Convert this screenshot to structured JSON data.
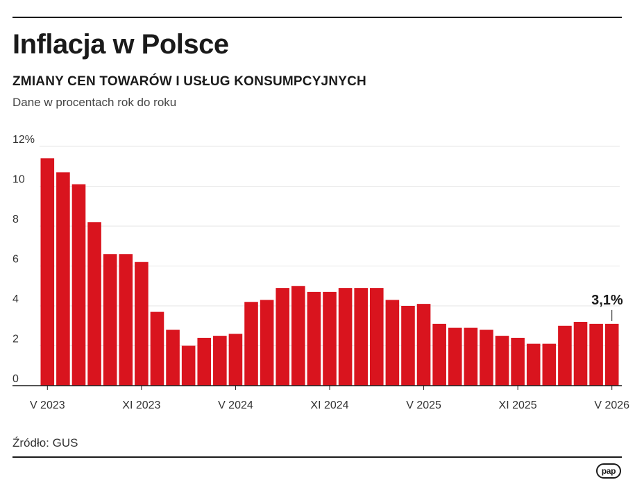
{
  "header": {
    "title": "Inflacja w Polsce",
    "subtitle": "ZMIANY CEN TOWARÓW I USŁUG KONSUMPCYJNYCH",
    "unit_note": "Dane w procentach rok do roku"
  },
  "footer": {
    "source": "Źródło: GUS",
    "logo_text": "pap"
  },
  "chart_data": {
    "type": "bar",
    "title": "Inflacja w Polsce",
    "subtitle": "ZMIANY CEN TOWARÓW I USŁUG KONSUMPCYJNYCH",
    "xlabel": "",
    "ylabel": "",
    "ylim": [
      0,
      12
    ],
    "yticks": [
      "0",
      "2",
      "4",
      "6",
      "8",
      "10",
      "12%"
    ],
    "grid": true,
    "legend": "none",
    "bar_color": "#d9141e",
    "categories": [
      "V 2023",
      "VI 2023",
      "VII 2023",
      "VIII 2023",
      "IX 2023",
      "X 2023",
      "XI 2023",
      "XII 2023",
      "I 2024",
      "II 2024",
      "III 2024",
      "IV 2024",
      "V 2024",
      "VI 2024",
      "VII 2024",
      "VIII 2024",
      "IX 2024",
      "X 2024",
      "XI 2024",
      "XII 2024",
      "I 2025",
      "II 2025",
      "III 2025",
      "IV 2025",
      "V 2025",
      "VI 2025",
      "VII 2025",
      "VIII 2025",
      "IX 2025",
      "X 2025",
      "XI 2025",
      "XII 2025",
      "I 2026",
      "II 2026",
      "III 2026",
      "IV 2026",
      "V 2026"
    ],
    "values": [
      11.4,
      10.7,
      10.1,
      8.2,
      6.6,
      6.6,
      6.2,
      3.7,
      2.8,
      2.0,
      2.4,
      2.5,
      2.6,
      4.2,
      4.3,
      4.9,
      5.0,
      4.7,
      4.7,
      4.9,
      4.9,
      4.9,
      4.3,
      4.0,
      4.1,
      3.1,
      2.9,
      2.9,
      2.8,
      2.5,
      2.4,
      2.1,
      2.1,
      3.0,
      3.2,
      3.1,
      3.1
    ],
    "x_tick_labels": [
      {
        "index": 0,
        "label": "V 2023"
      },
      {
        "index": 6,
        "label": "XI 2023"
      },
      {
        "index": 12,
        "label": "V 2024"
      },
      {
        "index": 18,
        "label": "XI 2024"
      },
      {
        "index": 24,
        "label": "V 2025"
      },
      {
        "index": 30,
        "label": "XI 2025"
      },
      {
        "index": 36,
        "label": "V 2026"
      }
    ],
    "annotation": {
      "index": 36,
      "text": "3,1%"
    }
  }
}
